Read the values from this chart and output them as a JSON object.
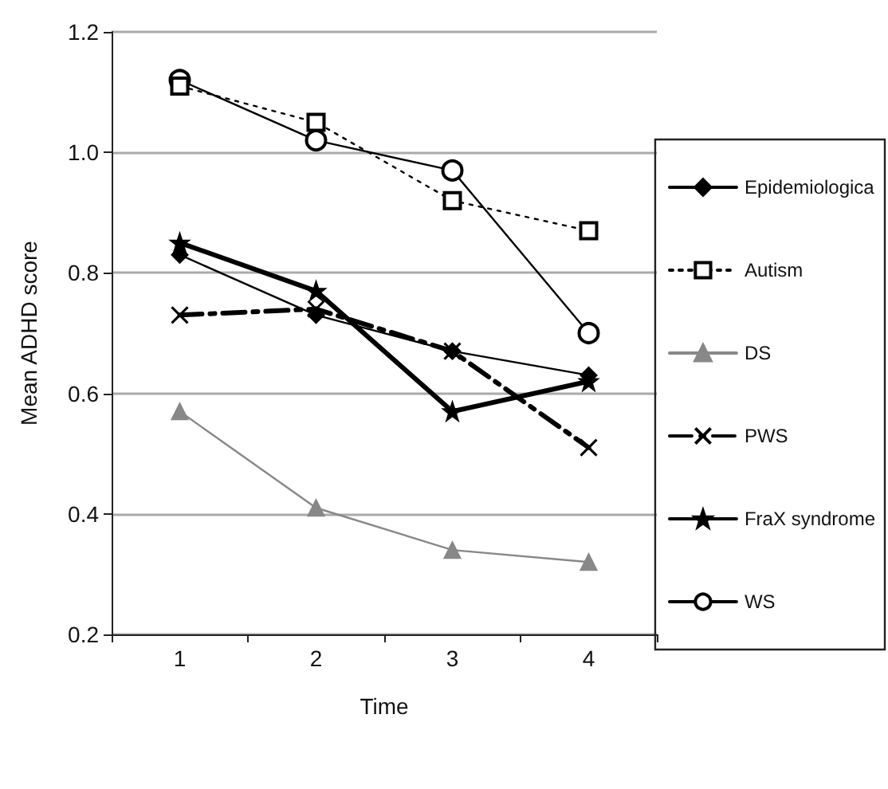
{
  "chart_data": {
    "type": "line",
    "xlabel": "Time",
    "ylabel": "Mean ADHD score",
    "categories": [
      "1",
      "2",
      "3",
      "4"
    ],
    "ylim": [
      0.2,
      1.2
    ],
    "yticks": [
      {
        "value": 0.2,
        "label": "0.2"
      },
      {
        "value": 0.4,
        "label": "0.4"
      },
      {
        "value": 0.6,
        "label": "0.6"
      },
      {
        "value": 0.8,
        "label": "0.8"
      },
      {
        "value": 1.0,
        "label": "1.0"
      },
      {
        "value": 1.2,
        "label": "1.2"
      }
    ],
    "grid": "y",
    "legend": "right",
    "series": [
      {
        "name": "Epidemiologica",
        "color": "#000000",
        "marker": "diamond",
        "line_style": "solid",
        "values": [
          0.83,
          0.73,
          0.67,
          0.63
        ]
      },
      {
        "name": "Autism",
        "color": "#000000",
        "marker": "square",
        "line_style": "dotted",
        "values": [
          1.11,
          1.05,
          0.92,
          0.87
        ]
      },
      {
        "name": "DS",
        "color": "#888888",
        "marker": "triangle",
        "line_style": "solid",
        "values": [
          0.57,
          0.41,
          0.34,
          0.32
        ]
      },
      {
        "name": "PWS",
        "color": "#000000",
        "marker": "cross",
        "line_style": "dashed",
        "values": [
          0.73,
          0.74,
          0.67,
          0.51
        ]
      },
      {
        "name": "FraX syndrome",
        "color": "#000000",
        "marker": "star",
        "line_style": "solid",
        "values": [
          0.85,
          0.77,
          0.57,
          0.62
        ]
      },
      {
        "name": "WS",
        "color": "#000000",
        "marker": "circle",
        "line_style": "solid",
        "values": [
          1.12,
          1.02,
          0.97,
          0.7
        ]
      }
    ]
  }
}
